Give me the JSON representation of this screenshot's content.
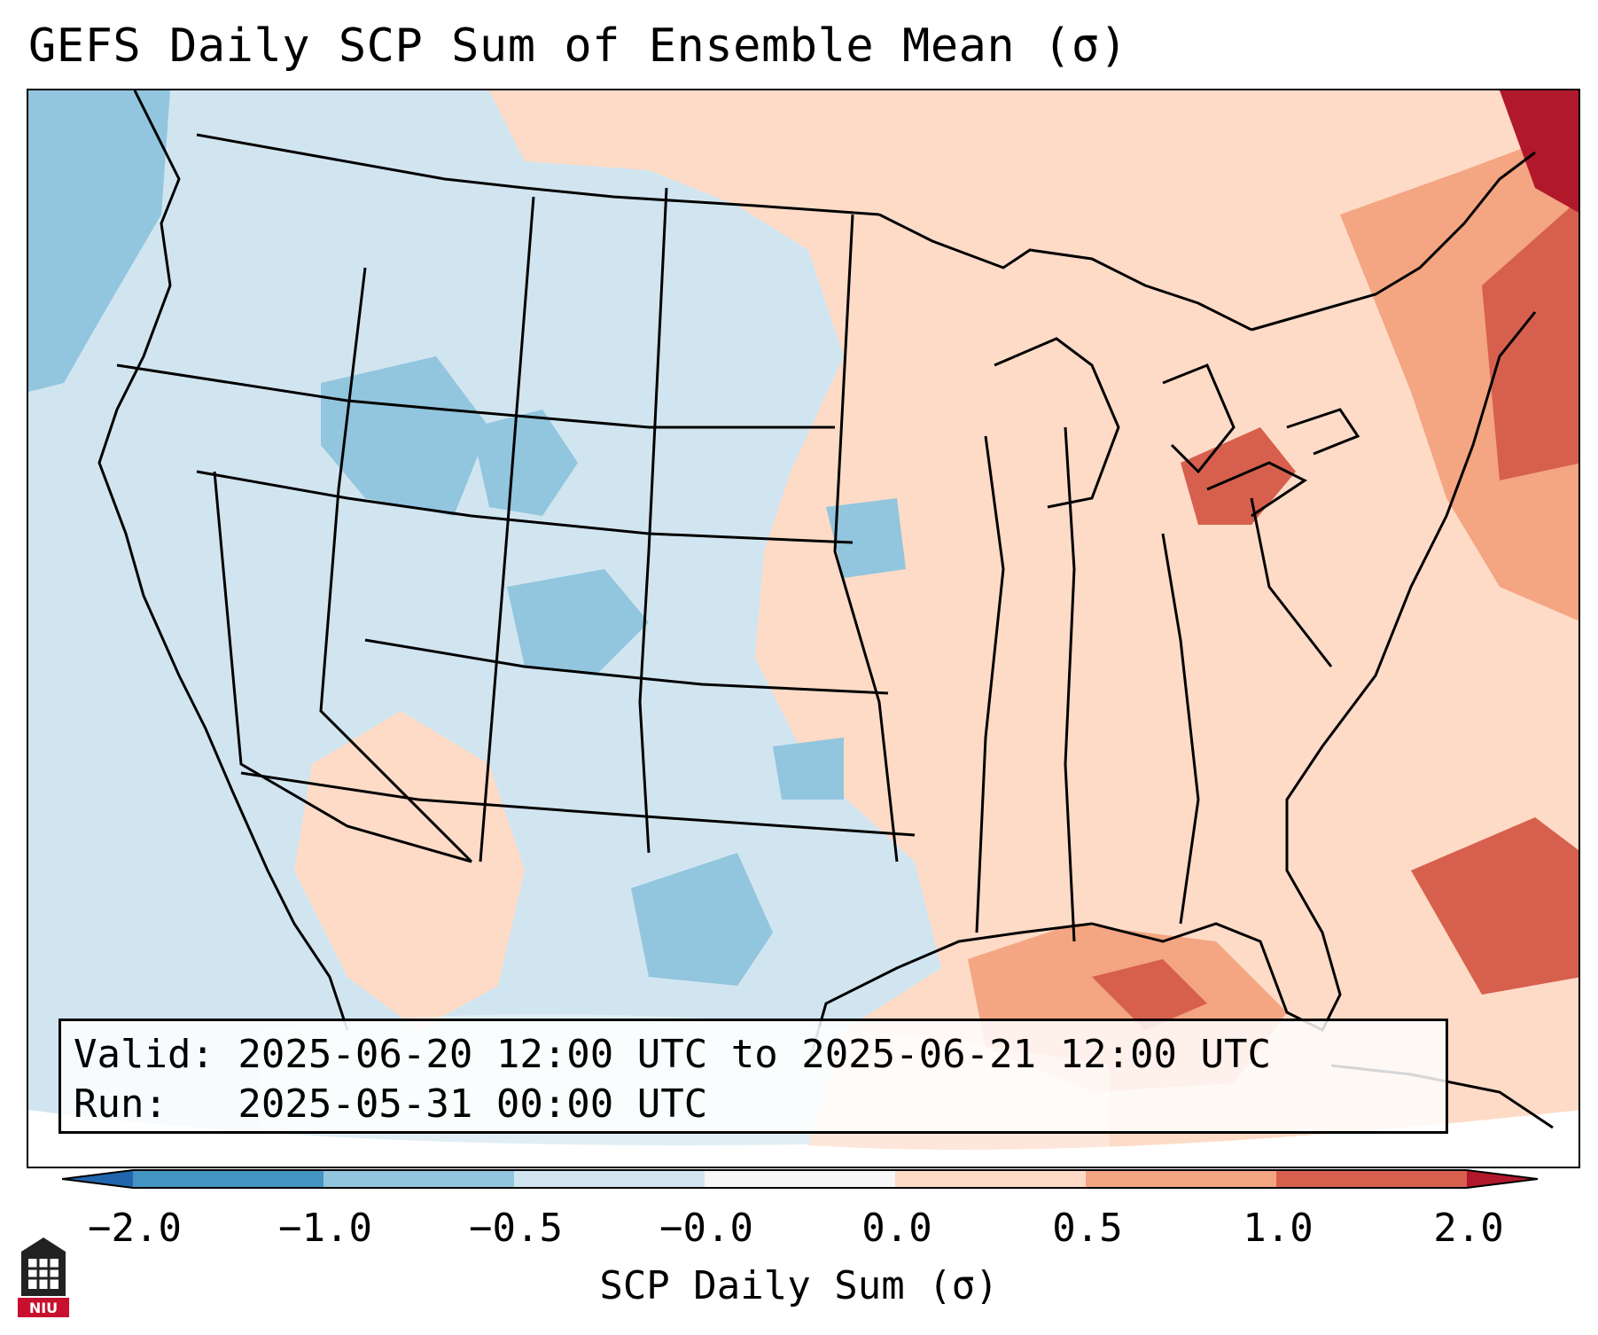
{
  "title": "GEFS Daily SCP Sum of Ensemble Mean (σ)",
  "info": {
    "valid": "Valid: 2025-06-20 12:00 UTC to 2025-06-21 12:00 UTC",
    "run": "Run:   2025-05-31 00:00 UTC"
  },
  "colorbar": {
    "label": "SCP Daily Sum (σ)",
    "ticks": [
      "−2.0",
      "−1.0",
      "−0.5",
      "−0.0",
      "0.0",
      "0.5",
      "1.0",
      "2.0"
    ],
    "colors": [
      "#2166ac",
      "#4393c3",
      "#92c5de",
      "#d1e5f0",
      "#f7f7f7",
      "#fddbc7",
      "#f4a582",
      "#d6604d",
      "#b2182b"
    ]
  },
  "logo": {
    "text": "NIU"
  }
}
